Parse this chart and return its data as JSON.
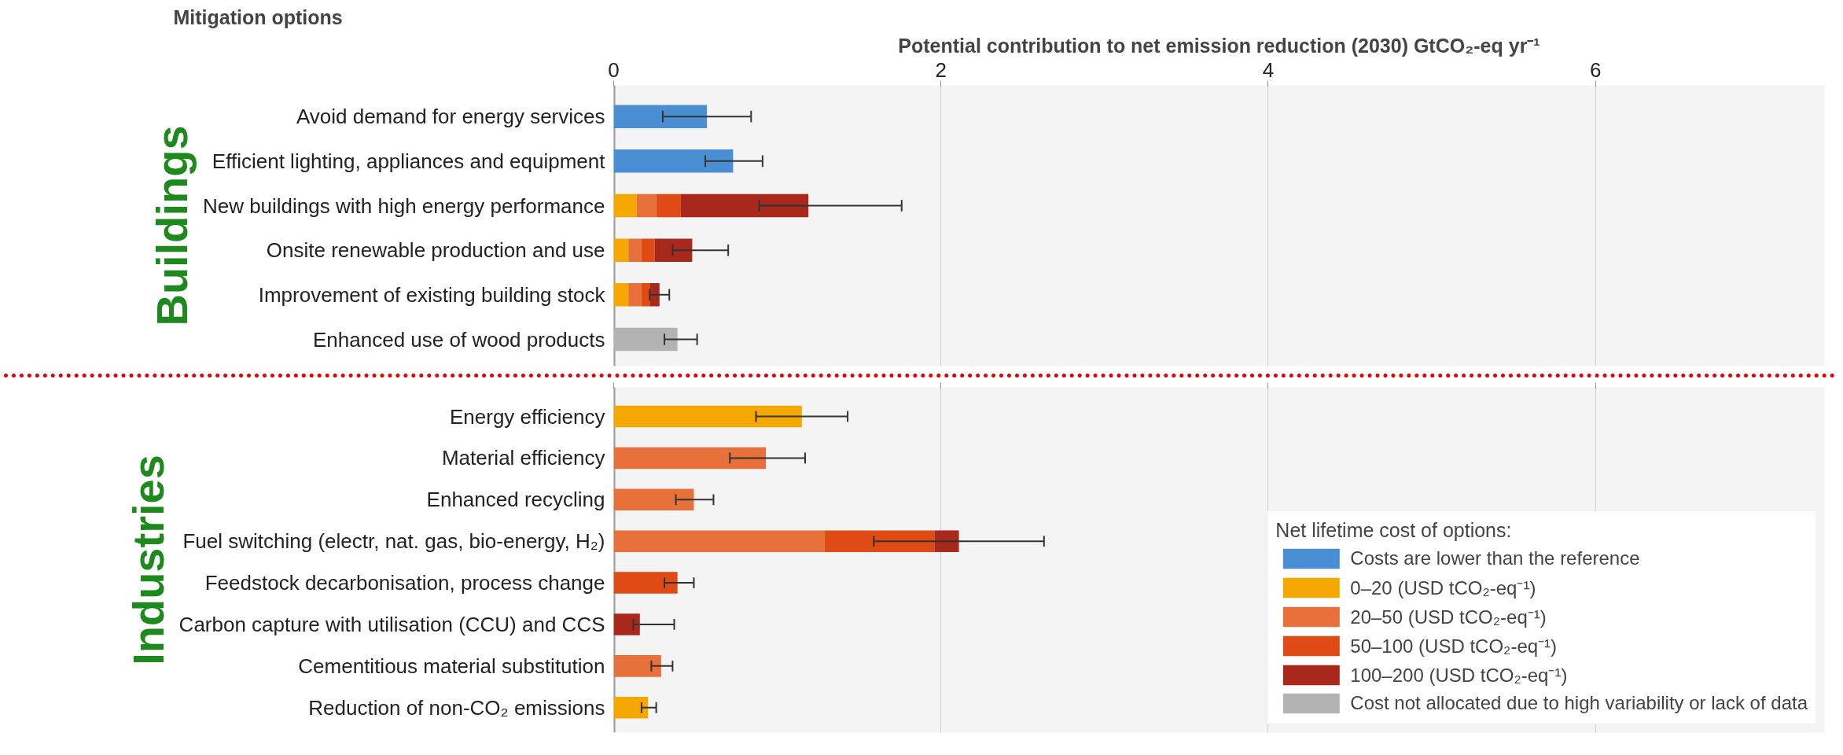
{
  "chart_data": [
    {
      "type": "bar",
      "orientation": "horizontal",
      "stacked": true,
      "title": "Buildings",
      "xlabel": "Potential contribution to net emission reduction (2030) GtCO₂-eq yr⁻¹",
      "ylabel": "Mitigation options",
      "categories": [
        "Avoid demand for energy services",
        "Efficient lighting, appliances and equipment",
        "New buildings with high energy performance",
        "Onsite renewable production and use",
        "Improvement of existing building stock",
        "Enhanced use of wood products"
      ],
      "series": [
        {
          "color": "#4a8fd4",
          "values": [
            0.57,
            0.73,
            null,
            null,
            null,
            null
          ],
          "errors": [
            [
              0.3,
              0.84
            ],
            [
              0.56,
              0.91
            ],
            null,
            null,
            null,
            null
          ]
        },
        {
          "color": "#f5a800",
          "values": [
            null,
            null,
            0.14,
            0.09,
            0.09,
            null
          ]
        },
        {
          "color": "#e8703a",
          "values": [
            null,
            null,
            0.12,
            0.08,
            0.08,
            null
          ]
        },
        {
          "color": "#e04a14",
          "values": [
            null,
            null,
            0.15,
            0.08,
            0.05,
            null
          ]
        },
        {
          "color": "#a8291c",
          "values": [
            null,
            null,
            0.78,
            0.23,
            0.06,
            null
          ],
          "errors": [
            null,
            null,
            [
              0.89,
              1.76
            ],
            [
              0.36,
              0.7
            ],
            [
              0.22,
              0.34
            ],
            null
          ]
        },
        {
          "color": "#b3b3b3",
          "values": [
            null,
            null,
            null,
            null,
            null,
            0.39
          ],
          "errors": [
            null,
            null,
            null,
            null,
            null,
            [
              0.31,
              0.51
            ]
          ]
        }
      ],
      "xlim": [
        0,
        7.4
      ],
      "xticks": [
        0,
        2,
        4,
        6
      ],
      "grid": "x",
      "legend": false
    },
    {
      "type": "bar",
      "orientation": "horizontal",
      "stacked": true,
      "title": "Industries",
      "legend_title": "Net lifetime cost of options:",
      "categories": [
        "Energy efficiency",
        "Material efficiency",
        "Enhanced recycling",
        "Fuel switching (electr, nat. gas, bio-energy, H₂)",
        "Feedstock decarbonisation, process change",
        "Carbon capture with utilisation (CCU) and CCS",
        "Cementitious material substitution",
        "Reduction of non-CO₂ emissions"
      ],
      "series": [
        {
          "name": "Costs are lower than the reference",
          "color": "#4a8fd4",
          "values": [
            null,
            null,
            null,
            null,
            null,
            null,
            null,
            null
          ]
        },
        {
          "name": "0–20 (USD tCO₂-eq⁻¹)",
          "color": "#f5a800",
          "values": [
            1.15,
            null,
            null,
            null,
            null,
            null,
            null,
            0.21
          ],
          "errors": [
            [
              0.87,
              1.43
            ],
            null,
            null,
            null,
            null,
            null,
            null,
            [
              0.17,
              0.26
            ]
          ]
        },
        {
          "name": "20–50 (USD tCO₂-eq⁻¹)",
          "color": "#e8703a",
          "values": [
            null,
            0.93,
            0.49,
            1.29,
            null,
            null,
            0.29,
            null
          ],
          "errors": [
            null,
            [
              0.71,
              1.17
            ],
            [
              0.38,
              0.61
            ],
            null,
            null,
            null,
            [
              0.23,
              0.36
            ],
            null
          ]
        },
        {
          "name": "50–100 (USD tCO₂-eq⁻¹)",
          "color": "#e04a14",
          "values": [
            null,
            null,
            null,
            0.67,
            0.39,
            null,
            null,
            null
          ],
          "errors": [
            null,
            null,
            null,
            null,
            [
              0.31,
              0.49
            ],
            null,
            null,
            null
          ]
        },
        {
          "name": "100–200 (USD tCO₂-eq⁻¹)",
          "color": "#a8291c",
          "values": [
            null,
            null,
            null,
            0.15,
            null,
            0.16,
            null,
            null
          ],
          "errors": [
            null,
            null,
            null,
            [
              1.59,
              2.63
            ],
            null,
            [
              0.12,
              0.37
            ],
            null,
            null
          ]
        },
        {
          "name": "Cost not allocated due to high variability or lack of data",
          "color": "#b3b3b3",
          "values": [
            null,
            null,
            null,
            null,
            null,
            null,
            null,
            null
          ]
        }
      ],
      "xlim": [
        0,
        7.4
      ],
      "xticks": [
        0,
        2,
        4,
        6
      ],
      "grid": "x",
      "legend": "bottom right",
      "tick_labels": "y"
    }
  ]
}
